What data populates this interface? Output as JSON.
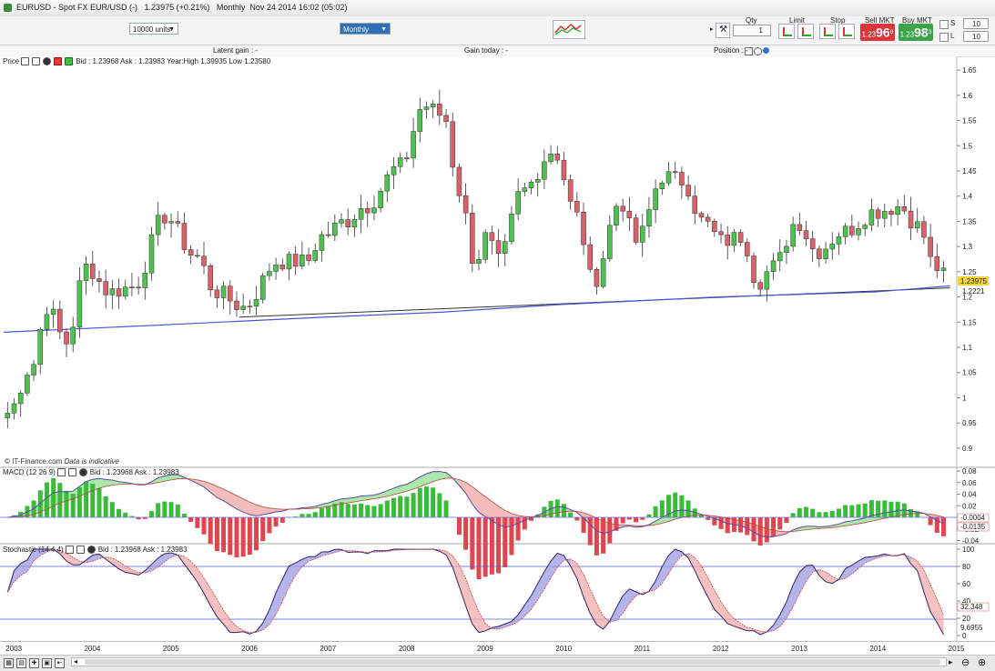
{
  "titlebar": {
    "symbol": "EURUSD",
    "description": "Spot FX EUR/USD (-)",
    "price": "1.23975 (+0.21%)",
    "period": "Monthly",
    "datetime": "Nov 24 2014 16:02 (05:02)"
  },
  "toolbar": {
    "units": "10000 units",
    "period": "Monthly",
    "qty_label": "Qty",
    "qty_value": "1",
    "limit_label": "Limit",
    "stop_label": "Stop",
    "sell_label": "Sell MKT",
    "buy_label": "Buy MKT",
    "sell_small": "1.23",
    "sell_big": "96",
    "sell_sup": "8",
    "buy_small": "1.23",
    "buy_big": "98",
    "buy_sup": "3",
    "s_label": "S",
    "s_value": "10",
    "l_label": "L",
    "l_value": "10"
  },
  "infobar": {
    "latent_gain": "Latent gain : -",
    "gain_today": "Gain today : -",
    "position": "Position : -"
  },
  "price_panel": {
    "title": "Price",
    "info": "Bid : 1.23968 Ask : 1.23983 Year:High 1.39935 Low 1.23580",
    "credit": "© IT-Finance.com",
    "credit_note": "Data is indicative",
    "last_price": "1.23975",
    "ma_value": "1.2221",
    "colors": {
      "up": "#4ec24e",
      "down": "#d9626a",
      "ma": "#4a55d6",
      "trend": "#333333",
      "last": "#f3d23a"
    }
  },
  "macd_panel": {
    "title": "MACD (12 26 9)",
    "info": "Bid : 1.23968 Ask : 1.23983",
    "value_a": "-0.0004",
    "value_b": "-0.0135",
    "ticks": [
      "0.08",
      "0.06",
      "0.04",
      "0.02",
      "-0.02",
      "-0.04"
    ]
  },
  "stoch_panel": {
    "title": "Stochastic (14 4 4)",
    "info": "Bid : 1.23968 Ask : 1.23983",
    "value_a": "32.348",
    "value_b": "9.6955",
    "ticks": [
      "100",
      "80",
      "60",
      "40",
      "20",
      "0"
    ]
  },
  "chart_data": {
    "type": "candlestick",
    "title": "EURUSD Spot FX EUR/USD Monthly",
    "x_labels": [
      "2003",
      "2004",
      "2005",
      "2006",
      "2007",
      "2008",
      "2009",
      "2010",
      "2011",
      "2012",
      "2013",
      "2014",
      "2015"
    ],
    "y_ticks": [
      "1.65",
      "1.6",
      "1.55",
      "1.5",
      "1.45",
      "1.4",
      "1.35",
      "1.3",
      "1.25",
      "1.2",
      "1.15",
      "1.1",
      "1.05",
      "1",
      "0.95",
      "0.9"
    ],
    "ylim": [
      0.88,
      1.67
    ],
    "x_range": [
      2002.9,
      2015.0
    ],
    "anchors": [
      {
        "t": 2002.95,
        "p": 0.97
      },
      {
        "t": 2003.25,
        "p": 1.06
      },
      {
        "t": 2003.45,
        "p": 1.18
      },
      {
        "t": 2003.7,
        "p": 1.11
      },
      {
        "t": 2003.95,
        "p": 1.26
      },
      {
        "t": 2004.25,
        "p": 1.21
      },
      {
        "t": 2004.55,
        "p": 1.22
      },
      {
        "t": 2004.95,
        "p": 1.36
      },
      {
        "t": 2005.35,
        "p": 1.28
      },
      {
        "t": 2005.6,
        "p": 1.21
      },
      {
        "t": 2005.95,
        "p": 1.18
      },
      {
        "t": 2006.4,
        "p": 1.27
      },
      {
        "t": 2006.75,
        "p": 1.27
      },
      {
        "t": 2006.95,
        "p": 1.32
      },
      {
        "t": 2007.25,
        "p": 1.35
      },
      {
        "t": 2007.5,
        "p": 1.38
      },
      {
        "t": 2007.95,
        "p": 1.46
      },
      {
        "t": 2008.25,
        "p": 1.58
      },
      {
        "t": 2008.5,
        "p": 1.56
      },
      {
        "t": 2008.7,
        "p": 1.41
      },
      {
        "t": 2008.9,
        "p": 1.27
      },
      {
        "t": 2009.05,
        "p": 1.32
      },
      {
        "t": 2009.2,
        "p": 1.27
      },
      {
        "t": 2009.5,
        "p": 1.41
      },
      {
        "t": 2009.9,
        "p": 1.49
      },
      {
        "t": 2010.2,
        "p": 1.36
      },
      {
        "t": 2010.4,
        "p": 1.23
      },
      {
        "t": 2010.75,
        "p": 1.39
      },
      {
        "t": 2010.95,
        "p": 1.31
      },
      {
        "t": 2011.3,
        "p": 1.44
      },
      {
        "t": 2011.55,
        "p": 1.43
      },
      {
        "t": 2011.8,
        "p": 1.35
      },
      {
        "t": 2012.05,
        "p": 1.31
      },
      {
        "t": 2012.3,
        "p": 1.32
      },
      {
        "t": 2012.5,
        "p": 1.23
      },
      {
        "t": 2012.7,
        "p": 1.26
      },
      {
        "t": 2013.0,
        "p": 1.35
      },
      {
        "t": 2013.25,
        "p": 1.29
      },
      {
        "t": 2013.6,
        "p": 1.33
      },
      {
        "t": 2014.0,
        "p": 1.37
      },
      {
        "t": 2014.3,
        "p": 1.38
      },
      {
        "t": 2014.55,
        "p": 1.34
      },
      {
        "t": 2014.75,
        "p": 1.26
      },
      {
        "t": 2014.9,
        "p": 1.24
      }
    ],
    "moving_average": [
      {
        "t": 2002.9,
        "p": 1.13
      },
      {
        "t": 2005.0,
        "p": 1.145
      },
      {
        "t": 2007.0,
        "p": 1.16
      },
      {
        "t": 2008.5,
        "p": 1.17
      },
      {
        "t": 2010.0,
        "p": 1.185
      },
      {
        "t": 2012.0,
        "p": 1.2
      },
      {
        "t": 2014.0,
        "p": 1.21
      },
      {
        "t": 2014.95,
        "p": 1.222
      }
    ],
    "trendline": [
      {
        "t": 2005.9,
        "p": 1.16
      },
      {
        "t": 2014.95,
        "p": 1.218
      }
    ],
    "last_price": 1.23975
  }
}
